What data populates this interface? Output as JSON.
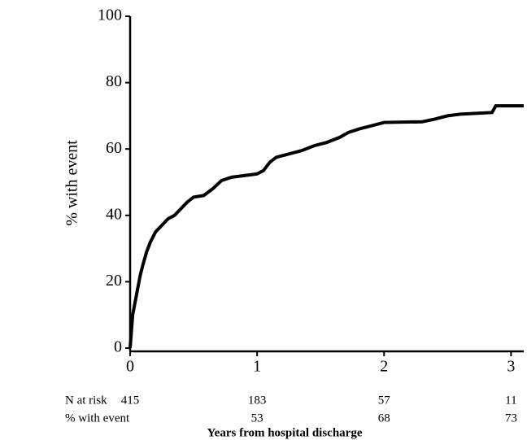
{
  "chart_data": {
    "type": "line",
    "step": true,
    "ylabel": "% with event",
    "xlabel": "Years from hospital discharge",
    "series": [
      {
        "color": "#000000",
        "x": [
          0,
          0.01,
          0.02,
          0.04,
          0.06,
          0.08,
          0.1,
          0.13,
          0.16,
          0.2,
          0.25,
          0.3,
          0.35,
          0.4,
          0.45,
          0.5,
          0.58,
          0.65,
          0.72,
          0.8,
          0.9,
          1.0,
          1.05,
          1.1,
          1.15,
          1.25,
          1.35,
          1.45,
          1.55,
          1.65,
          1.72,
          1.8,
          1.9,
          2.0,
          2.3,
          2.4,
          2.5,
          2.6,
          2.85,
          2.88,
          3.1
        ],
        "values": [
          0,
          5,
          10,
          14,
          18,
          22,
          25,
          29,
          32,
          35,
          37,
          39,
          40,
          42,
          44,
          45.5,
          46,
          48,
          50.5,
          51.5,
          52,
          52.5,
          53.5,
          56,
          57.5,
          58.5,
          59.5,
          61,
          62,
          63.5,
          65,
          66,
          67,
          68,
          68.2,
          69,
          70,
          70.5,
          71,
          73,
          73
        ]
      }
    ],
    "xlim": [
      0,
      3.1
    ],
    "xticks": [
      0,
      1,
      2,
      3
    ],
    "ylim": [
      0,
      100
    ],
    "yticks": [
      0,
      20,
      40,
      60,
      80,
      100
    ],
    "risk_table": {
      "rows": [
        {
          "label": "N at risk",
          "x": [
            0,
            1,
            2,
            3
          ],
          "values": [
            415,
            183,
            57,
            11
          ]
        },
        {
          "label": "% with event",
          "x": [
            1,
            2,
            3
          ],
          "values": [
            53,
            68,
            73
          ]
        }
      ]
    }
  }
}
